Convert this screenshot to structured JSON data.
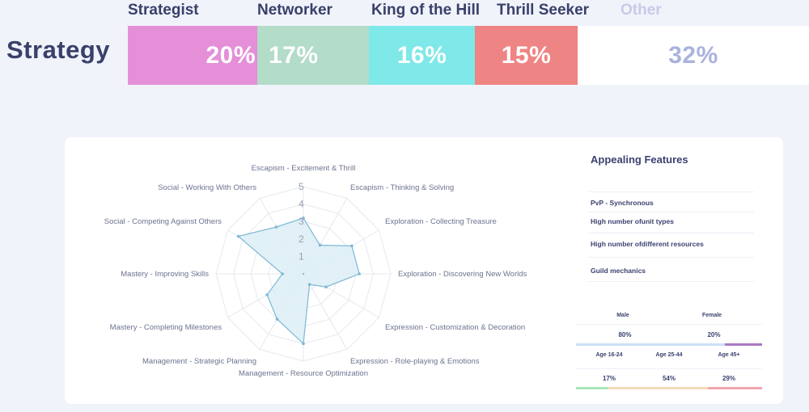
{
  "genre": "Strategy",
  "segments": [
    {
      "title": "Strategist",
      "percent_label": "20%",
      "percent": 20,
      "color": "#e48fd8"
    },
    {
      "title": "Networker",
      "percent_label": "17%",
      "percent": 17,
      "color": "#b3dcc9"
    },
    {
      "title": "King of the Hill",
      "percent_label": "16%",
      "percent": 16,
      "color": "#7fe8e8"
    },
    {
      "title": "Thrill Seeker",
      "percent_label": "15%",
      "percent": 15,
      "color": "#ef8484"
    },
    {
      "title": "Other",
      "percent_label": "32%",
      "percent": 32,
      "color": "#ffffff"
    }
  ],
  "chart_data": {
    "type": "radar",
    "axes": [
      "Escapism - Excitement & Thrill",
      "Escapism - Thinking & Solving",
      "Exploration - Collecting Treasure",
      "Exploration - Discovering New Worlds",
      "Expression - Customization & Decoration",
      "Expression - Role-playing & Emotions",
      "Management - Resource Optimization",
      "Management - Strategic Planning",
      "Mastery - Completing Milestones",
      "Mastery - Improving Skills",
      "Social - Competing Against Others",
      "Social - Working With Others"
    ],
    "scale_labels": [
      "1",
      "2",
      "3",
      "4",
      "5"
    ],
    "scale_max": 5,
    "values": [
      3.2,
      1.9,
      3.2,
      3.2,
      1.5,
      0.7,
      4.0,
      3.0,
      2.4,
      1.2,
      4.3,
      3.1
    ],
    "fill_color": "#dceef6",
    "stroke_color": "#7fb7d6"
  },
  "appealing_features": {
    "title": "Appealing Features",
    "items": [
      "PvP - Synchronous",
      "High number ofunit types",
      "High number ofdifferent resources",
      "Guild mechanics"
    ]
  },
  "gender": {
    "labels": [
      "Male",
      "Female"
    ],
    "values": [
      "80%",
      "20%"
    ],
    "shares": [
      0.8,
      0.2
    ],
    "colors": [
      "#cde0f6",
      "#a978c2"
    ]
  },
  "age": {
    "labels": [
      "Age 16-24",
      "Age 25-44",
      "Age 45+"
    ],
    "values": [
      "17%",
      "54%",
      "29%"
    ],
    "shares": [
      0.17,
      0.54,
      0.29
    ],
    "colors": [
      "#a8e6b8",
      "#f4dcb8",
      "#f2a6ae"
    ]
  }
}
